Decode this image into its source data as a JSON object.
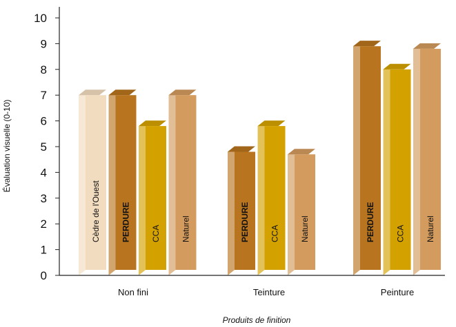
{
  "chart_data": {
    "type": "bar",
    "title": "",
    "xlabel": "Produits de finition",
    "ylabel": "Évaluation visuelle (0-10)",
    "ylim": [
      0,
      10
    ],
    "yticks": [
      "0",
      "1",
      "2",
      "3",
      "4",
      "5",
      "6",
      "7",
      "8",
      "9",
      "10"
    ],
    "grid": false,
    "legend": "none",
    "categories": [
      "Non fini",
      "Teinture",
      "Peinture"
    ],
    "bars": [
      {
        "category": "Non fini",
        "series": "Cèdre de l'Ouest",
        "label": "Cèdre de l'Ouest",
        "value": 7.0,
        "color": "#f2dcbf",
        "bold": false
      },
      {
        "category": "Non fini",
        "series": "PERDURE",
        "label": "PERDURE",
        "value": 7.0,
        "color": "#b8741e",
        "bold": true
      },
      {
        "category": "Non fini",
        "series": "CCA",
        "label": "CCA",
        "value": 5.8,
        "color": "#d4a200",
        "bold": false
      },
      {
        "category": "Non fini",
        "series": "Naturel",
        "label": "Naturel",
        "value": 7.0,
        "color": "#d39b5e",
        "bold": false
      },
      {
        "category": "Teinture",
        "series": "PERDURE",
        "label": "PERDURE",
        "value": 4.8,
        "color": "#b8741e",
        "bold": true
      },
      {
        "category": "Teinture",
        "series": "CCA",
        "label": "CCA",
        "value": 5.8,
        "color": "#d4a200",
        "bold": false
      },
      {
        "category": "Teinture",
        "series": "Naturel",
        "label": "Naturel",
        "value": 4.7,
        "color": "#d39b5e",
        "bold": false
      },
      {
        "category": "Peinture",
        "series": "PERDURE",
        "label": "PERDURE",
        "value": 8.9,
        "color": "#b8741e",
        "bold": true
      },
      {
        "category": "Peinture",
        "series": "CCA",
        "label": "CCA",
        "value": 8.0,
        "color": "#d4a200",
        "bold": false
      },
      {
        "category": "Peinture",
        "series": "Naturel",
        "label": "Naturel",
        "value": 8.8,
        "color": "#d39b5e",
        "bold": false
      }
    ]
  }
}
